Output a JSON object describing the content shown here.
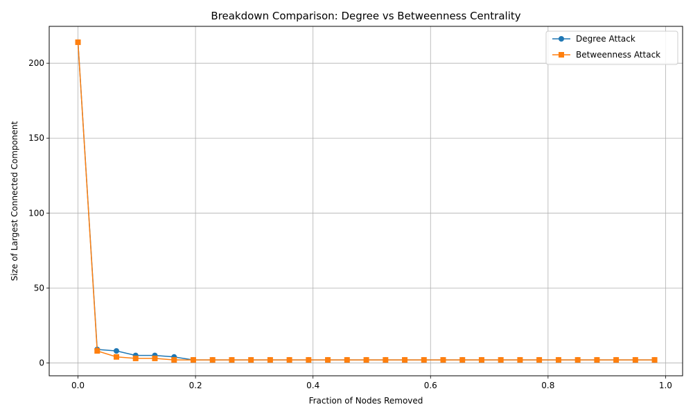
{
  "chart_data": {
    "type": "line",
    "title": "Breakdown Comparison: Degree vs Betweenness Centrality",
    "xlabel": "Fraction of Nodes Removed",
    "ylabel": "Size of Largest Connected Component",
    "xlim": [
      -0.049,
      1.029
    ],
    "ylim": [
      -8.6,
      224.6
    ],
    "xticks": [
      0.0,
      0.2,
      0.4,
      0.6,
      0.8,
      1.0
    ],
    "xtick_labels": [
      "0.0",
      "0.2",
      "0.4",
      "0.6",
      "0.8",
      "1.0"
    ],
    "yticks": [
      0,
      50,
      100,
      150,
      200
    ],
    "ytick_labels": [
      "0",
      "50",
      "100",
      "150",
      "200"
    ],
    "grid": true,
    "legend_position": "top-right",
    "x": [
      0.0,
      0.0327,
      0.0654,
      0.0981,
      0.1308,
      0.1636,
      0.1963,
      0.229,
      0.2617,
      0.2944,
      0.3271,
      0.3598,
      0.3925,
      0.4252,
      0.4579,
      0.4907,
      0.5234,
      0.5561,
      0.5888,
      0.6215,
      0.6542,
      0.6869,
      0.7196,
      0.7523,
      0.785,
      0.8178,
      0.8505,
      0.8832,
      0.9159,
      0.9486,
      0.9813
    ],
    "series": [
      {
        "name": "Degree Attack",
        "color": "#1f77b4",
        "marker": "circle",
        "values": [
          214,
          9,
          8,
          5,
          5,
          4,
          2,
          2,
          2,
          2,
          2,
          2,
          2,
          2,
          2,
          2,
          2,
          2,
          2,
          2,
          2,
          2,
          2,
          2,
          2,
          2,
          2,
          2,
          2,
          2,
          2
        ]
      },
      {
        "name": "Betweenness Attack",
        "color": "#ff7f0e",
        "marker": "square",
        "values": [
          214,
          8,
          4,
          3,
          3,
          2,
          2,
          2,
          2,
          2,
          2,
          2,
          2,
          2,
          2,
          2,
          2,
          2,
          2,
          2,
          2,
          2,
          2,
          2,
          2,
          2,
          2,
          2,
          2,
          2,
          2
        ]
      }
    ]
  }
}
